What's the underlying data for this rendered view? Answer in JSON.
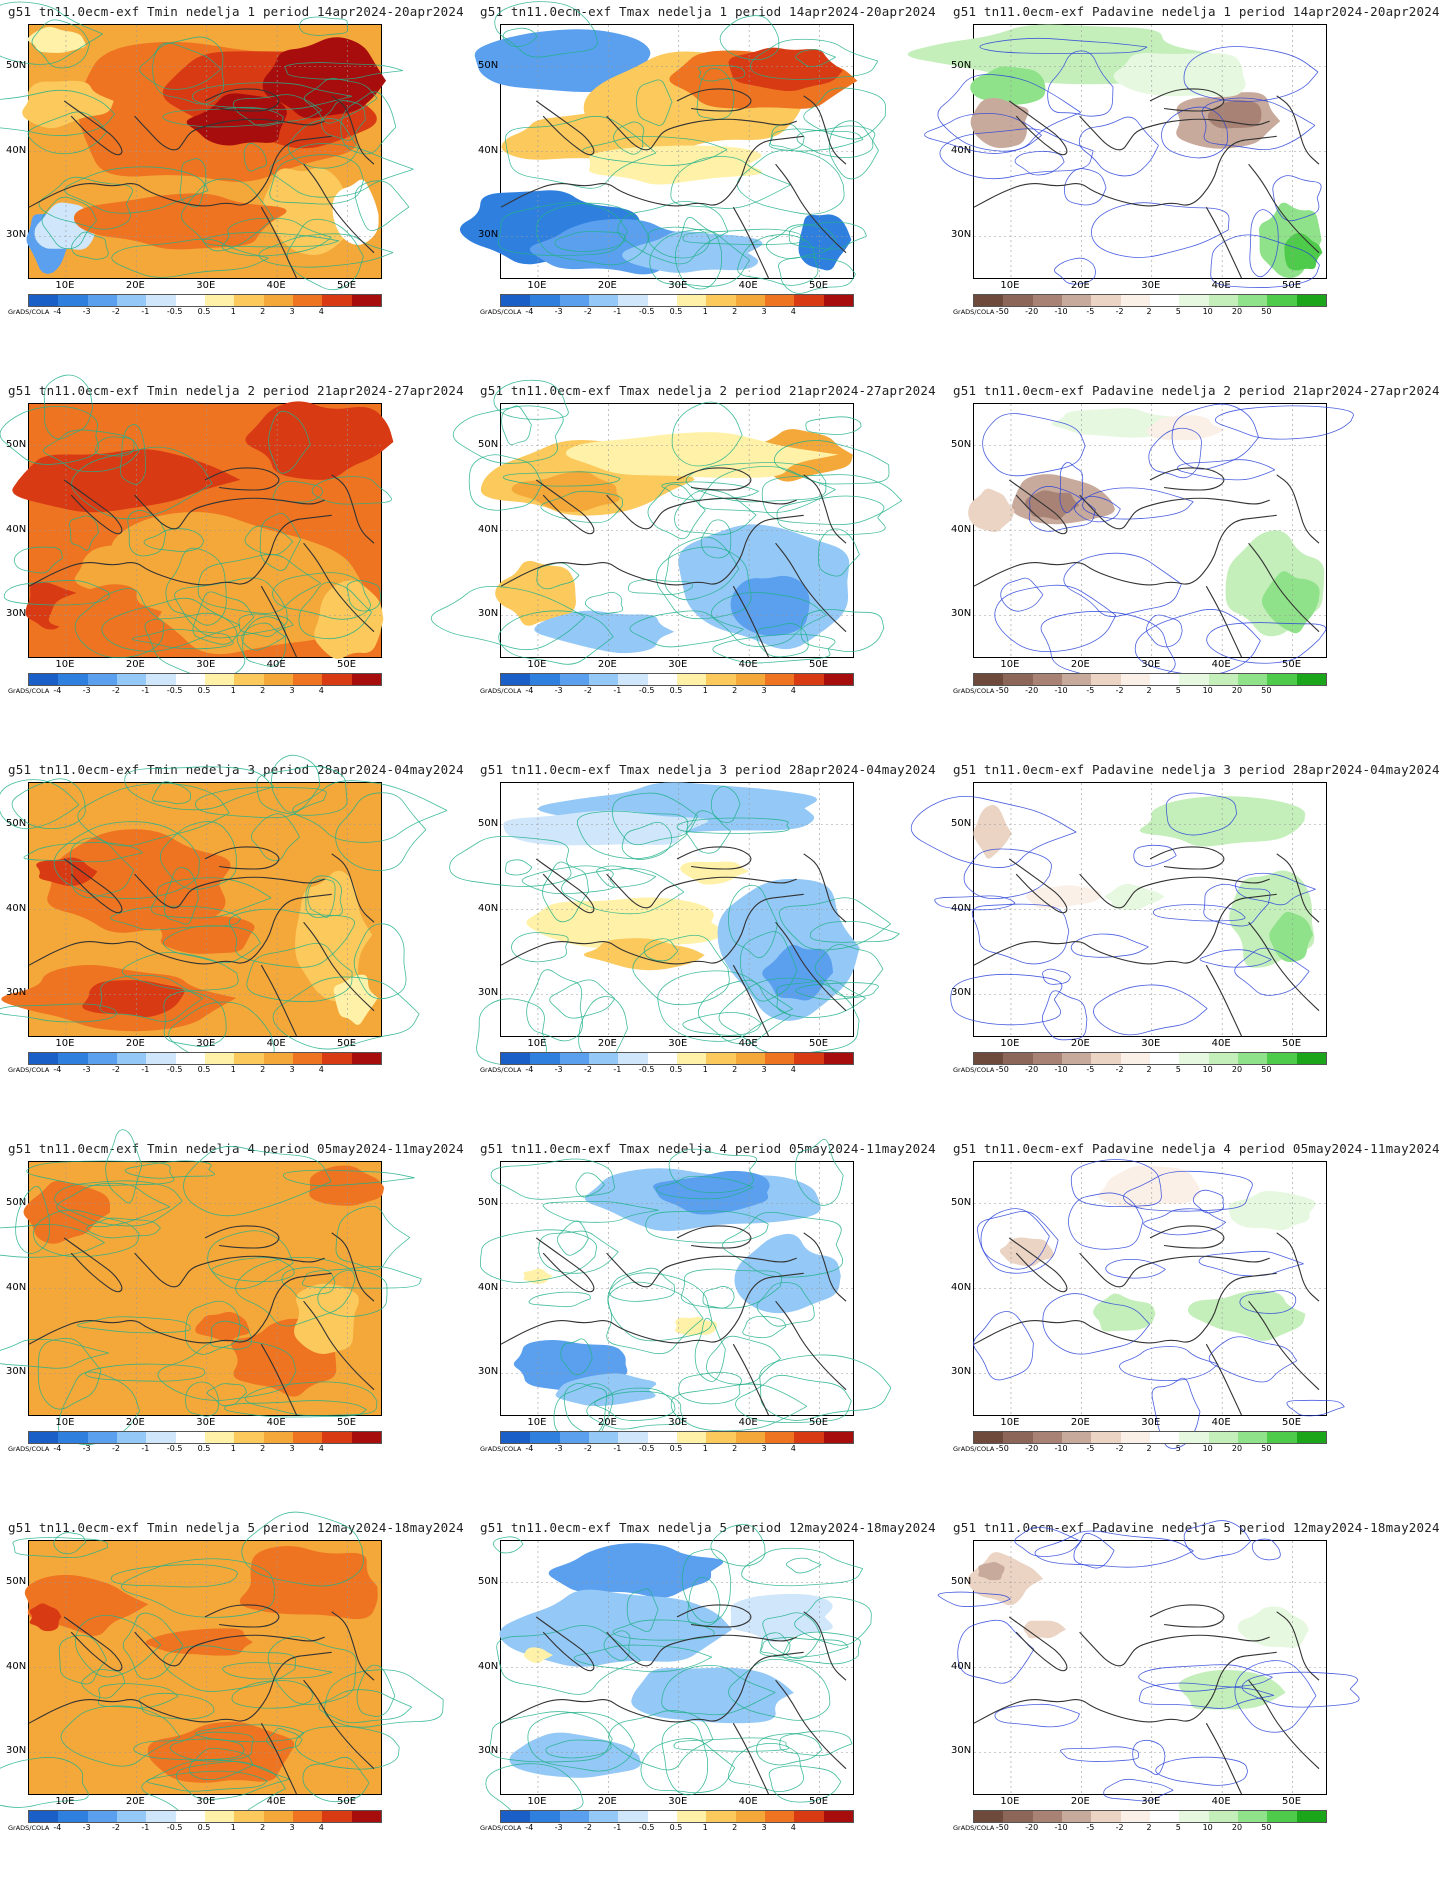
{
  "credit": "GrADS/COLA",
  "lat_labels": [
    "50N",
    "40N",
    "30N"
  ],
  "lon_labels": [
    "10E",
    "20E",
    "30E",
    "40E",
    "50E"
  ],
  "colorbars": {
    "temp": {
      "labels": [
        "-4",
        "-3",
        "-2",
        "-1",
        "-0.5",
        "0.5",
        "1",
        "2",
        "3",
        "4"
      ],
      "colors": [
        "#1a5fc8",
        "#2f7fdf",
        "#5aa0ee",
        "#94c8f6",
        "#cfe6fb",
        "#ffffff",
        "#fff2a8",
        "#fbc95c",
        "#f5a83a",
        "#ee7422",
        "#d83a14",
        "#a80d0d"
      ]
    },
    "precip": {
      "labels": [
        "-50",
        "-20",
        "-10",
        "-5",
        "-2",
        "2",
        "5",
        "10",
        "20",
        "50"
      ],
      "colors": [
        "#6e4a3c",
        "#8c6658",
        "#a88274",
        "#c8aa9c",
        "#ebd4c4",
        "#fbf0e8",
        "#ffffff",
        "#e6f8df",
        "#c4efba",
        "#8fe28a",
        "#4fcb4b",
        "#1ba51b"
      ]
    }
  },
  "weeks": [
    {
      "week": 1,
      "period": "14apr2024-20apr2024"
    },
    {
      "week": 2,
      "period": "21apr2024-27apr2024"
    },
    {
      "week": 3,
      "period": "28apr2024-04may2024"
    },
    {
      "week": 4,
      "period": "05may2024-11may2024"
    },
    {
      "week": 5,
      "period": "12may2024-18may2024"
    }
  ],
  "panels": [
    {
      "title": "g51 tn11.0ecm-exf Tmin nedelja 1 period 14apr2024-20apr2024",
      "variable": "Tmin",
      "colorbar": "temp",
      "fields": {
        "base": "#f5a83a",
        "blobs": [
          [
            "#ee7422",
            0.52,
            0.35,
            0.42,
            0.28
          ],
          [
            "#d83a14",
            0.7,
            0.28,
            0.3,
            0.2
          ],
          [
            "#a80d0d",
            0.82,
            0.22,
            0.18,
            0.16
          ],
          [
            "#a80d0d",
            0.6,
            0.38,
            0.15,
            0.1
          ],
          [
            "#fbc95c",
            0.1,
            0.3,
            0.12,
            0.1
          ],
          [
            "#fff2a8",
            0.08,
            0.06,
            0.08,
            0.05
          ],
          [
            "#5aa0ee",
            0.05,
            0.85,
            0.06,
            0.12
          ],
          [
            "#cfe6fb",
            0.1,
            0.8,
            0.08,
            0.1
          ],
          [
            "#fbc95c",
            0.8,
            0.72,
            0.12,
            0.18
          ],
          [
            "#ffffff",
            0.93,
            0.75,
            0.08,
            0.15
          ],
          [
            "#ee7422",
            0.45,
            0.78,
            0.3,
            0.12
          ]
        ]
      }
    },
    {
      "title": "g51 tn11.0ecm-exf Tmax nedelja 1 period 14apr2024-20apr2024",
      "variable": "Tmax",
      "colorbar": "temp",
      "fields": {
        "base": "#ffffff",
        "blobs": [
          [
            "#5aa0ee",
            0.18,
            0.15,
            0.3,
            0.12
          ],
          [
            "#fbc95c",
            0.55,
            0.3,
            0.35,
            0.2
          ],
          [
            "#ee7422",
            0.72,
            0.22,
            0.25,
            0.14
          ],
          [
            "#d83a14",
            0.8,
            0.18,
            0.15,
            0.1
          ],
          [
            "#fbc95c",
            0.25,
            0.45,
            0.25,
            0.1
          ],
          [
            "#2f7fdf",
            0.12,
            0.8,
            0.25,
            0.15
          ],
          [
            "#5aa0ee",
            0.35,
            0.88,
            0.25,
            0.1
          ],
          [
            "#94c8f6",
            0.55,
            0.9,
            0.2,
            0.08
          ],
          [
            "#2f7fdf",
            0.92,
            0.85,
            0.08,
            0.12
          ],
          [
            "#fff2a8",
            0.5,
            0.55,
            0.25,
            0.08
          ]
        ]
      }
    },
    {
      "title": "g51 tn11.0ecm-exf Padavine nedelja 1 period 14apr2024-20apr2024",
      "variable": "Padavine",
      "colorbar": "precip",
      "fields": {
        "base": "#ffffff",
        "blobs": [
          [
            "#c4efba",
            0.25,
            0.12,
            0.4,
            0.12
          ],
          [
            "#8fe28a",
            0.1,
            0.25,
            0.1,
            0.08
          ],
          [
            "#c8aa9c",
            0.08,
            0.38,
            0.08,
            0.1
          ],
          [
            "#c8aa9c",
            0.72,
            0.38,
            0.15,
            0.12
          ],
          [
            "#a88274",
            0.75,
            0.36,
            0.08,
            0.06
          ],
          [
            "#8fe28a",
            0.9,
            0.85,
            0.1,
            0.14
          ],
          [
            "#4fcb4b",
            0.93,
            0.9,
            0.06,
            0.08
          ],
          [
            "#e6f8df",
            0.6,
            0.2,
            0.2,
            0.1
          ]
        ]
      }
    },
    {
      "title": "g51 tn11.0ecm-exf Tmin nedelja 2 period 21apr2024-27apr2024",
      "variable": "Tmin",
      "colorbar": "temp",
      "fields": {
        "base": "#ee7422",
        "blobs": [
          [
            "#d83a14",
            0.82,
            0.15,
            0.2,
            0.16
          ],
          [
            "#d83a14",
            0.25,
            0.3,
            0.3,
            0.12
          ],
          [
            "#d83a14",
            0.06,
            0.8,
            0.08,
            0.1
          ],
          [
            "#f5a83a",
            0.6,
            0.7,
            0.4,
            0.28
          ],
          [
            "#f5a83a",
            0.35,
            0.65,
            0.25,
            0.12
          ],
          [
            "#fbc95c",
            0.9,
            0.85,
            0.1,
            0.15
          ],
          [
            "#ee7422",
            0.2,
            0.82,
            0.15,
            0.1
          ]
        ]
      }
    },
    {
      "title": "g51 tn11.0ecm-exf Tmax nedelja 2 period 21apr2024-27apr2024",
      "variable": "Tmax",
      "colorbar": "temp",
      "fields": {
        "base": "#ffffff",
        "blobs": [
          [
            "#fbc95c",
            0.25,
            0.3,
            0.3,
            0.15
          ],
          [
            "#f5a83a",
            0.2,
            0.35,
            0.15,
            0.08
          ],
          [
            "#f5a83a",
            0.85,
            0.2,
            0.15,
            0.1
          ],
          [
            "#fff2a8",
            0.55,
            0.2,
            0.35,
            0.1
          ],
          [
            "#94c8f6",
            0.75,
            0.7,
            0.25,
            0.25
          ],
          [
            "#5aa0ee",
            0.78,
            0.78,
            0.12,
            0.12
          ],
          [
            "#fbc95c",
            0.1,
            0.75,
            0.12,
            0.12
          ],
          [
            "#94c8f6",
            0.3,
            0.9,
            0.2,
            0.08
          ]
        ]
      }
    },
    {
      "title": "g51 tn11.0ecm-exf Padavine nedelja 2 period 21apr2024-27apr2024",
      "variable": "Padavine",
      "colorbar": "precip",
      "fields": {
        "base": "#ffffff",
        "blobs": [
          [
            "#c8aa9c",
            0.25,
            0.38,
            0.15,
            0.1
          ],
          [
            "#a88274",
            0.22,
            0.4,
            0.08,
            0.06
          ],
          [
            "#ebd4c4",
            0.05,
            0.42,
            0.06,
            0.08
          ],
          [
            "#c4efba",
            0.85,
            0.72,
            0.14,
            0.2
          ],
          [
            "#8fe28a",
            0.9,
            0.78,
            0.08,
            0.12
          ],
          [
            "#e6f8df",
            0.4,
            0.08,
            0.2,
            0.06
          ],
          [
            "#fbf0e8",
            0.6,
            0.1,
            0.1,
            0.05
          ]
        ]
      }
    },
    {
      "title": "g51 tn11.0ecm-exf Tmin nedelja 3 period 28apr2024-04may2024",
      "variable": "Tmin",
      "colorbar": "temp",
      "fields": {
        "base": "#f5a83a",
        "blobs": [
          [
            "#ee7422",
            0.3,
            0.4,
            0.28,
            0.2
          ],
          [
            "#ee7422",
            0.25,
            0.85,
            0.3,
            0.12
          ],
          [
            "#d83a14",
            0.1,
            0.35,
            0.08,
            0.06
          ],
          [
            "#d83a14",
            0.3,
            0.85,
            0.15,
            0.08
          ],
          [
            "#fbc95c",
            0.85,
            0.6,
            0.12,
            0.25
          ],
          [
            "#fff2a8",
            0.92,
            0.85,
            0.06,
            0.1
          ],
          [
            "#ee7422",
            0.5,
            0.6,
            0.15,
            0.08
          ]
        ]
      }
    },
    {
      "title": "g51 tn11.0ecm-exf Tmax nedelja 3 period 28apr2024-04may2024",
      "variable": "Tmax",
      "colorbar": "temp",
      "fields": {
        "base": "#ffffff",
        "blobs": [
          [
            "#94c8f6",
            0.55,
            0.1,
            0.4,
            0.1
          ],
          [
            "#cfe6fb",
            0.3,
            0.18,
            0.3,
            0.08
          ],
          [
            "#fff2a8",
            0.35,
            0.55,
            0.3,
            0.1
          ],
          [
            "#fbc95c",
            0.4,
            0.68,
            0.15,
            0.06
          ],
          [
            "#94c8f6",
            0.8,
            0.65,
            0.2,
            0.28
          ],
          [
            "#5aa0ee",
            0.85,
            0.75,
            0.1,
            0.12
          ],
          [
            "#fff2a8",
            0.6,
            0.35,
            0.1,
            0.05
          ]
        ]
      }
    },
    {
      "title": "g51 tn11.0ecm-exf Padavine nedelja 3 period 28apr2024-04may2024",
      "variable": "Padavine",
      "colorbar": "precip",
      "fields": {
        "base": "#ffffff",
        "blobs": [
          [
            "#ebd4c4",
            0.05,
            0.2,
            0.05,
            0.1
          ],
          [
            "#c4efba",
            0.7,
            0.15,
            0.25,
            0.1
          ],
          [
            "#c4efba",
            0.85,
            0.55,
            0.12,
            0.2
          ],
          [
            "#8fe28a",
            0.9,
            0.6,
            0.06,
            0.1
          ],
          [
            "#e6f8df",
            0.45,
            0.45,
            0.08,
            0.05
          ],
          [
            "#fbf0e8",
            0.25,
            0.45,
            0.1,
            0.05
          ]
        ]
      }
    },
    {
      "title": "g51 tn11.0ecm-exf Tmin nedelja 4 period 05may2024-11may2024",
      "variable": "Tmin",
      "colorbar": "temp",
      "fields": {
        "base": "#f5a83a",
        "blobs": [
          [
            "#ee7422",
            0.1,
            0.2,
            0.12,
            0.12
          ],
          [
            "#ee7422",
            0.9,
            0.1,
            0.1,
            0.08
          ],
          [
            "#ee7422",
            0.72,
            0.78,
            0.15,
            0.15
          ],
          [
            "#ee7422",
            0.55,
            0.65,
            0.08,
            0.06
          ],
          [
            "#fbc95c",
            0.85,
            0.6,
            0.1,
            0.15
          ]
        ]
      }
    },
    {
      "title": "g51 tn11.0ecm-exf Tmax nedelja 4 period 05may2024-11may2024",
      "variable": "Tmax",
      "colorbar": "temp",
      "fields": {
        "base": "#ffffff",
        "blobs": [
          [
            "#94c8f6",
            0.55,
            0.15,
            0.35,
            0.12
          ],
          [
            "#5aa0ee",
            0.6,
            0.12,
            0.2,
            0.08
          ],
          [
            "#94c8f6",
            0.8,
            0.45,
            0.15,
            0.15
          ],
          [
            "#5aa0ee",
            0.2,
            0.8,
            0.2,
            0.1
          ],
          [
            "#94c8f6",
            0.3,
            0.9,
            0.15,
            0.06
          ],
          [
            "#fff2a8",
            0.55,
            0.65,
            0.06,
            0.04
          ],
          [
            "#fff2a8",
            0.1,
            0.45,
            0.04,
            0.03
          ]
        ]
      }
    },
    {
      "title": "g51 tn11.0ecm-exf Padavine nedelja 4 period 05may2024-11may2024",
      "variable": "Padavine",
      "colorbar": "precip",
      "fields": {
        "base": "#ffffff",
        "blobs": [
          [
            "#fbf0e8",
            0.5,
            0.1,
            0.15,
            0.08
          ],
          [
            "#ebd4c4",
            0.15,
            0.35,
            0.08,
            0.06
          ],
          [
            "#c4efba",
            0.42,
            0.6,
            0.08,
            0.08
          ],
          [
            "#c4efba",
            0.78,
            0.6,
            0.15,
            0.1
          ],
          [
            "#e6f8df",
            0.85,
            0.2,
            0.12,
            0.08
          ]
        ]
      }
    },
    {
      "title": "g51 tn11.0ecm-exf Tmin nedelja 5 period 12may2024-18may2024",
      "variable": "Tmin",
      "colorbar": "temp",
      "fields": {
        "base": "#f5a83a",
        "blobs": [
          [
            "#ee7422",
            0.8,
            0.18,
            0.22,
            0.15
          ],
          [
            "#ee7422",
            0.15,
            0.25,
            0.18,
            0.12
          ],
          [
            "#d83a14",
            0.05,
            0.3,
            0.05,
            0.05
          ],
          [
            "#ee7422",
            0.55,
            0.85,
            0.2,
            0.12
          ],
          [
            "#ee7422",
            0.5,
            0.4,
            0.15,
            0.06
          ]
        ]
      }
    },
    {
      "title": "g51 tn11.0ecm-exf Tmax nedelja 5 period 12may2024-18may2024",
      "variable": "Tmax",
      "colorbar": "temp",
      "fields": {
        "base": "#ffffff",
        "blobs": [
          [
            "#5aa0ee",
            0.4,
            0.12,
            0.25,
            0.1
          ],
          [
            "#94c8f6",
            0.3,
            0.35,
            0.3,
            0.15
          ],
          [
            "#94c8f6",
            0.6,
            0.6,
            0.25,
            0.12
          ],
          [
            "#cfe6fb",
            0.8,
            0.3,
            0.15,
            0.1
          ],
          [
            "#94c8f6",
            0.2,
            0.85,
            0.2,
            0.1
          ],
          [
            "#fff2a8",
            0.1,
            0.45,
            0.04,
            0.03
          ]
        ]
      }
    },
    {
      "title": "g51 tn11.0ecm-exf Padavine nedelja 5 period 12may2024-18may2024",
      "variable": "Padavine",
      "colorbar": "precip",
      "fields": {
        "base": "#ffffff",
        "blobs": [
          [
            "#ebd4c4",
            0.08,
            0.15,
            0.1,
            0.1
          ],
          [
            "#c8aa9c",
            0.05,
            0.12,
            0.04,
            0.04
          ],
          [
            "#ebd4c4",
            0.2,
            0.35,
            0.06,
            0.04
          ],
          [
            "#c4efba",
            0.72,
            0.6,
            0.15,
            0.08
          ],
          [
            "#e6f8df",
            0.85,
            0.35,
            0.1,
            0.08
          ]
        ]
      }
    }
  ]
}
